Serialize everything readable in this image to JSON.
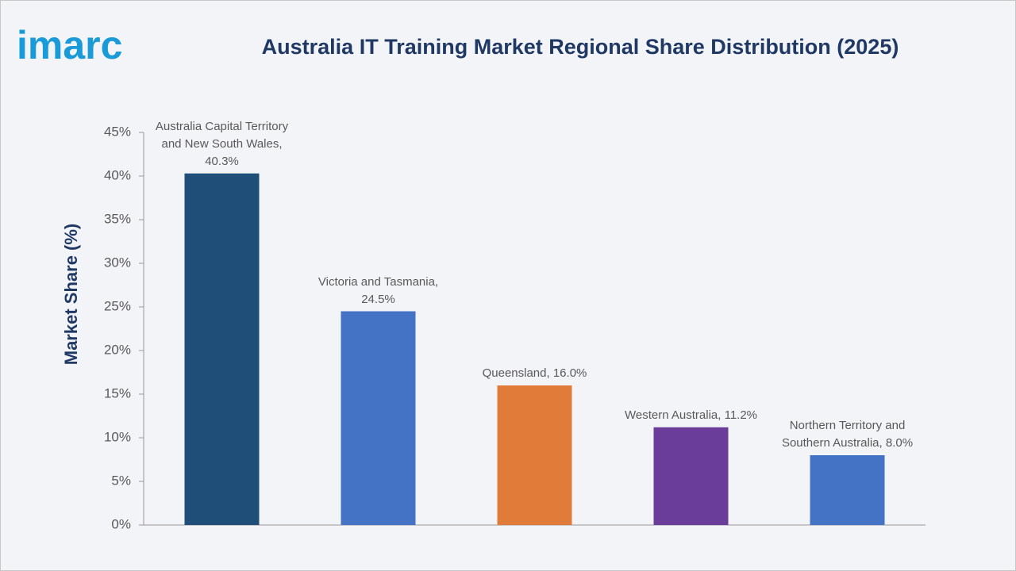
{
  "logo": "imarc",
  "chart_data": {
    "type": "bar",
    "title": "Australia IT Training Market Regional Share Distribution (2025)",
    "y_label": "Market Share (%)",
    "categories": [
      "Australia Capital Territory and New South Wales,",
      "Victoria and Tasmania,",
      "Queensland,",
      "Western Australia,",
      "Northern Territory and Southern Australia,"
    ],
    "values": [
      40.3,
      24.5,
      16.0,
      11.2,
      8.0
    ],
    "value_labels": [
      "40.3%",
      "24.5%",
      "16.0%",
      "11.2%",
      "8.0%"
    ],
    "colors": [
      "#1f4e79",
      "#4472c4",
      "#e07b39",
      "#6a3d9a",
      "#4472c4"
    ],
    "ylim": [
      0,
      45
    ],
    "yticks": [
      {
        "value": 0,
        "label": "0%"
      },
      {
        "value": 5,
        "label": "5%"
      },
      {
        "value": 10,
        "label": "10%"
      },
      {
        "value": 15,
        "label": "15%"
      },
      {
        "value": 20,
        "label": "20%"
      },
      {
        "value": 25,
        "label": "25%"
      },
      {
        "value": 30,
        "label": "30%"
      },
      {
        "value": 35,
        "label": "35%"
      },
      {
        "value": 40,
        "label": "40%"
      },
      {
        "value": 45,
        "label": "45%"
      }
    ],
    "grid": false
  }
}
